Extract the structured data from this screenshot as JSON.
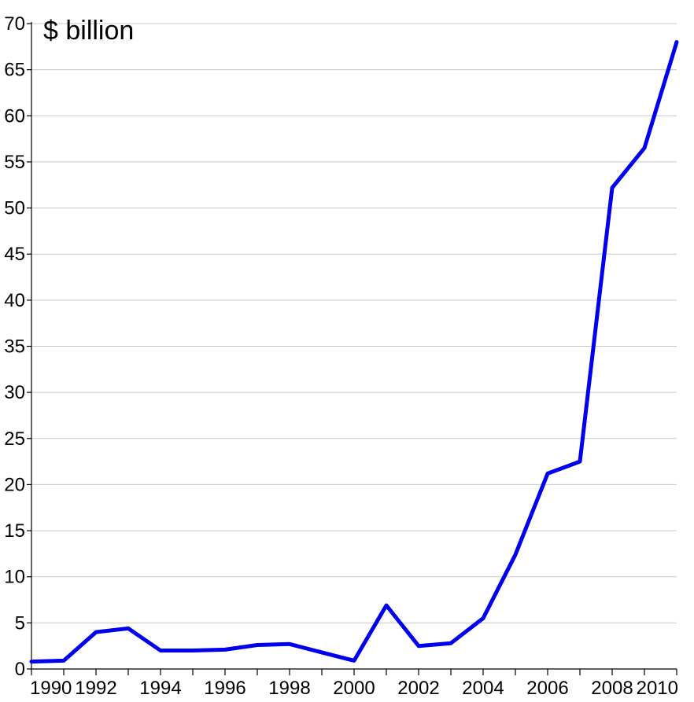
{
  "chart_data": {
    "type": "line",
    "title": "",
    "unit_label": "$ billion",
    "xlabel": "",
    "ylabel": "",
    "xlim": [
      1990,
      2010
    ],
    "ylim": [
      0,
      70
    ],
    "y_ticks": [
      0,
      5,
      10,
      15,
      20,
      25,
      30,
      35,
      40,
      45,
      50,
      55,
      60,
      65,
      70
    ],
    "x_ticks": [
      1990,
      1991,
      1992,
      1993,
      1994,
      1995,
      1996,
      1997,
      1998,
      1999,
      2000,
      2001,
      2002,
      2003,
      2004,
      2005,
      2006,
      2007,
      2008,
      2009,
      2010
    ],
    "x_tick_labels": [
      1990,
      1992,
      1994,
      1996,
      1998,
      2000,
      2002,
      2004,
      2006,
      2008,
      2010
    ],
    "grid": "horizontal",
    "legend": "none",
    "series": [
      {
        "color": "#0000ee",
        "x": [
          1990,
          1991,
          1992,
          1993,
          1994,
          1995,
          1996,
          1997,
          1998,
          1999,
          2000,
          2001,
          2002,
          2003,
          2004,
          2005,
          2006,
          2007,
          2008,
          2009,
          2010
        ],
        "values": [
          0.8,
          0.9,
          4.0,
          4.4,
          2.0,
          2.0,
          2.1,
          2.6,
          2.7,
          1.8,
          0.9,
          6.9,
          2.5,
          2.8,
          5.5,
          12.4,
          21.2,
          22.5,
          52.2,
          56.5,
          68.0
        ]
      }
    ]
  }
}
